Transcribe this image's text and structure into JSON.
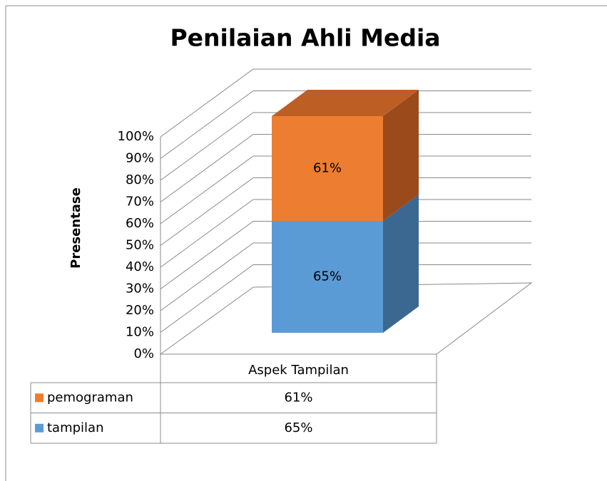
{
  "chart_data": {
    "type": "bar3d",
    "stacking": "percent",
    "title": "Penilaian Ahli Media",
    "y_label": "Presentase",
    "categories": [
      "Aspek Tampilan"
    ],
    "series": [
      {
        "name": "tampilan",
        "color": "#5b9bd5",
        "side_color": "#3b6890",
        "top_color": "#4c84b8",
        "values": [
          65
        ],
        "value_labels": [
          "65%"
        ]
      },
      {
        "name": "pemograman",
        "color": "#ed7d31",
        "side_color": "#9b4a1c",
        "top_color": "#bd5f25",
        "values": [
          61
        ],
        "value_labels": [
          "61%"
        ]
      }
    ],
    "ylim": [
      0,
      100
    ],
    "yticks": [
      {
        "value": 0,
        "label": "0%"
      },
      {
        "value": 10,
        "label": "10%"
      },
      {
        "value": 20,
        "label": "20%"
      },
      {
        "value": 30,
        "label": "30%"
      },
      {
        "value": 40,
        "label": "40%"
      },
      {
        "value": 50,
        "label": "50%"
      },
      {
        "value": 60,
        "label": "60%"
      },
      {
        "value": 70,
        "label": "70%"
      },
      {
        "value": 80,
        "label": "80%"
      },
      {
        "value": 90,
        "label": "90%"
      },
      {
        "value": 100,
        "label": "100%"
      }
    ],
    "grid": true,
    "data_table": true
  }
}
